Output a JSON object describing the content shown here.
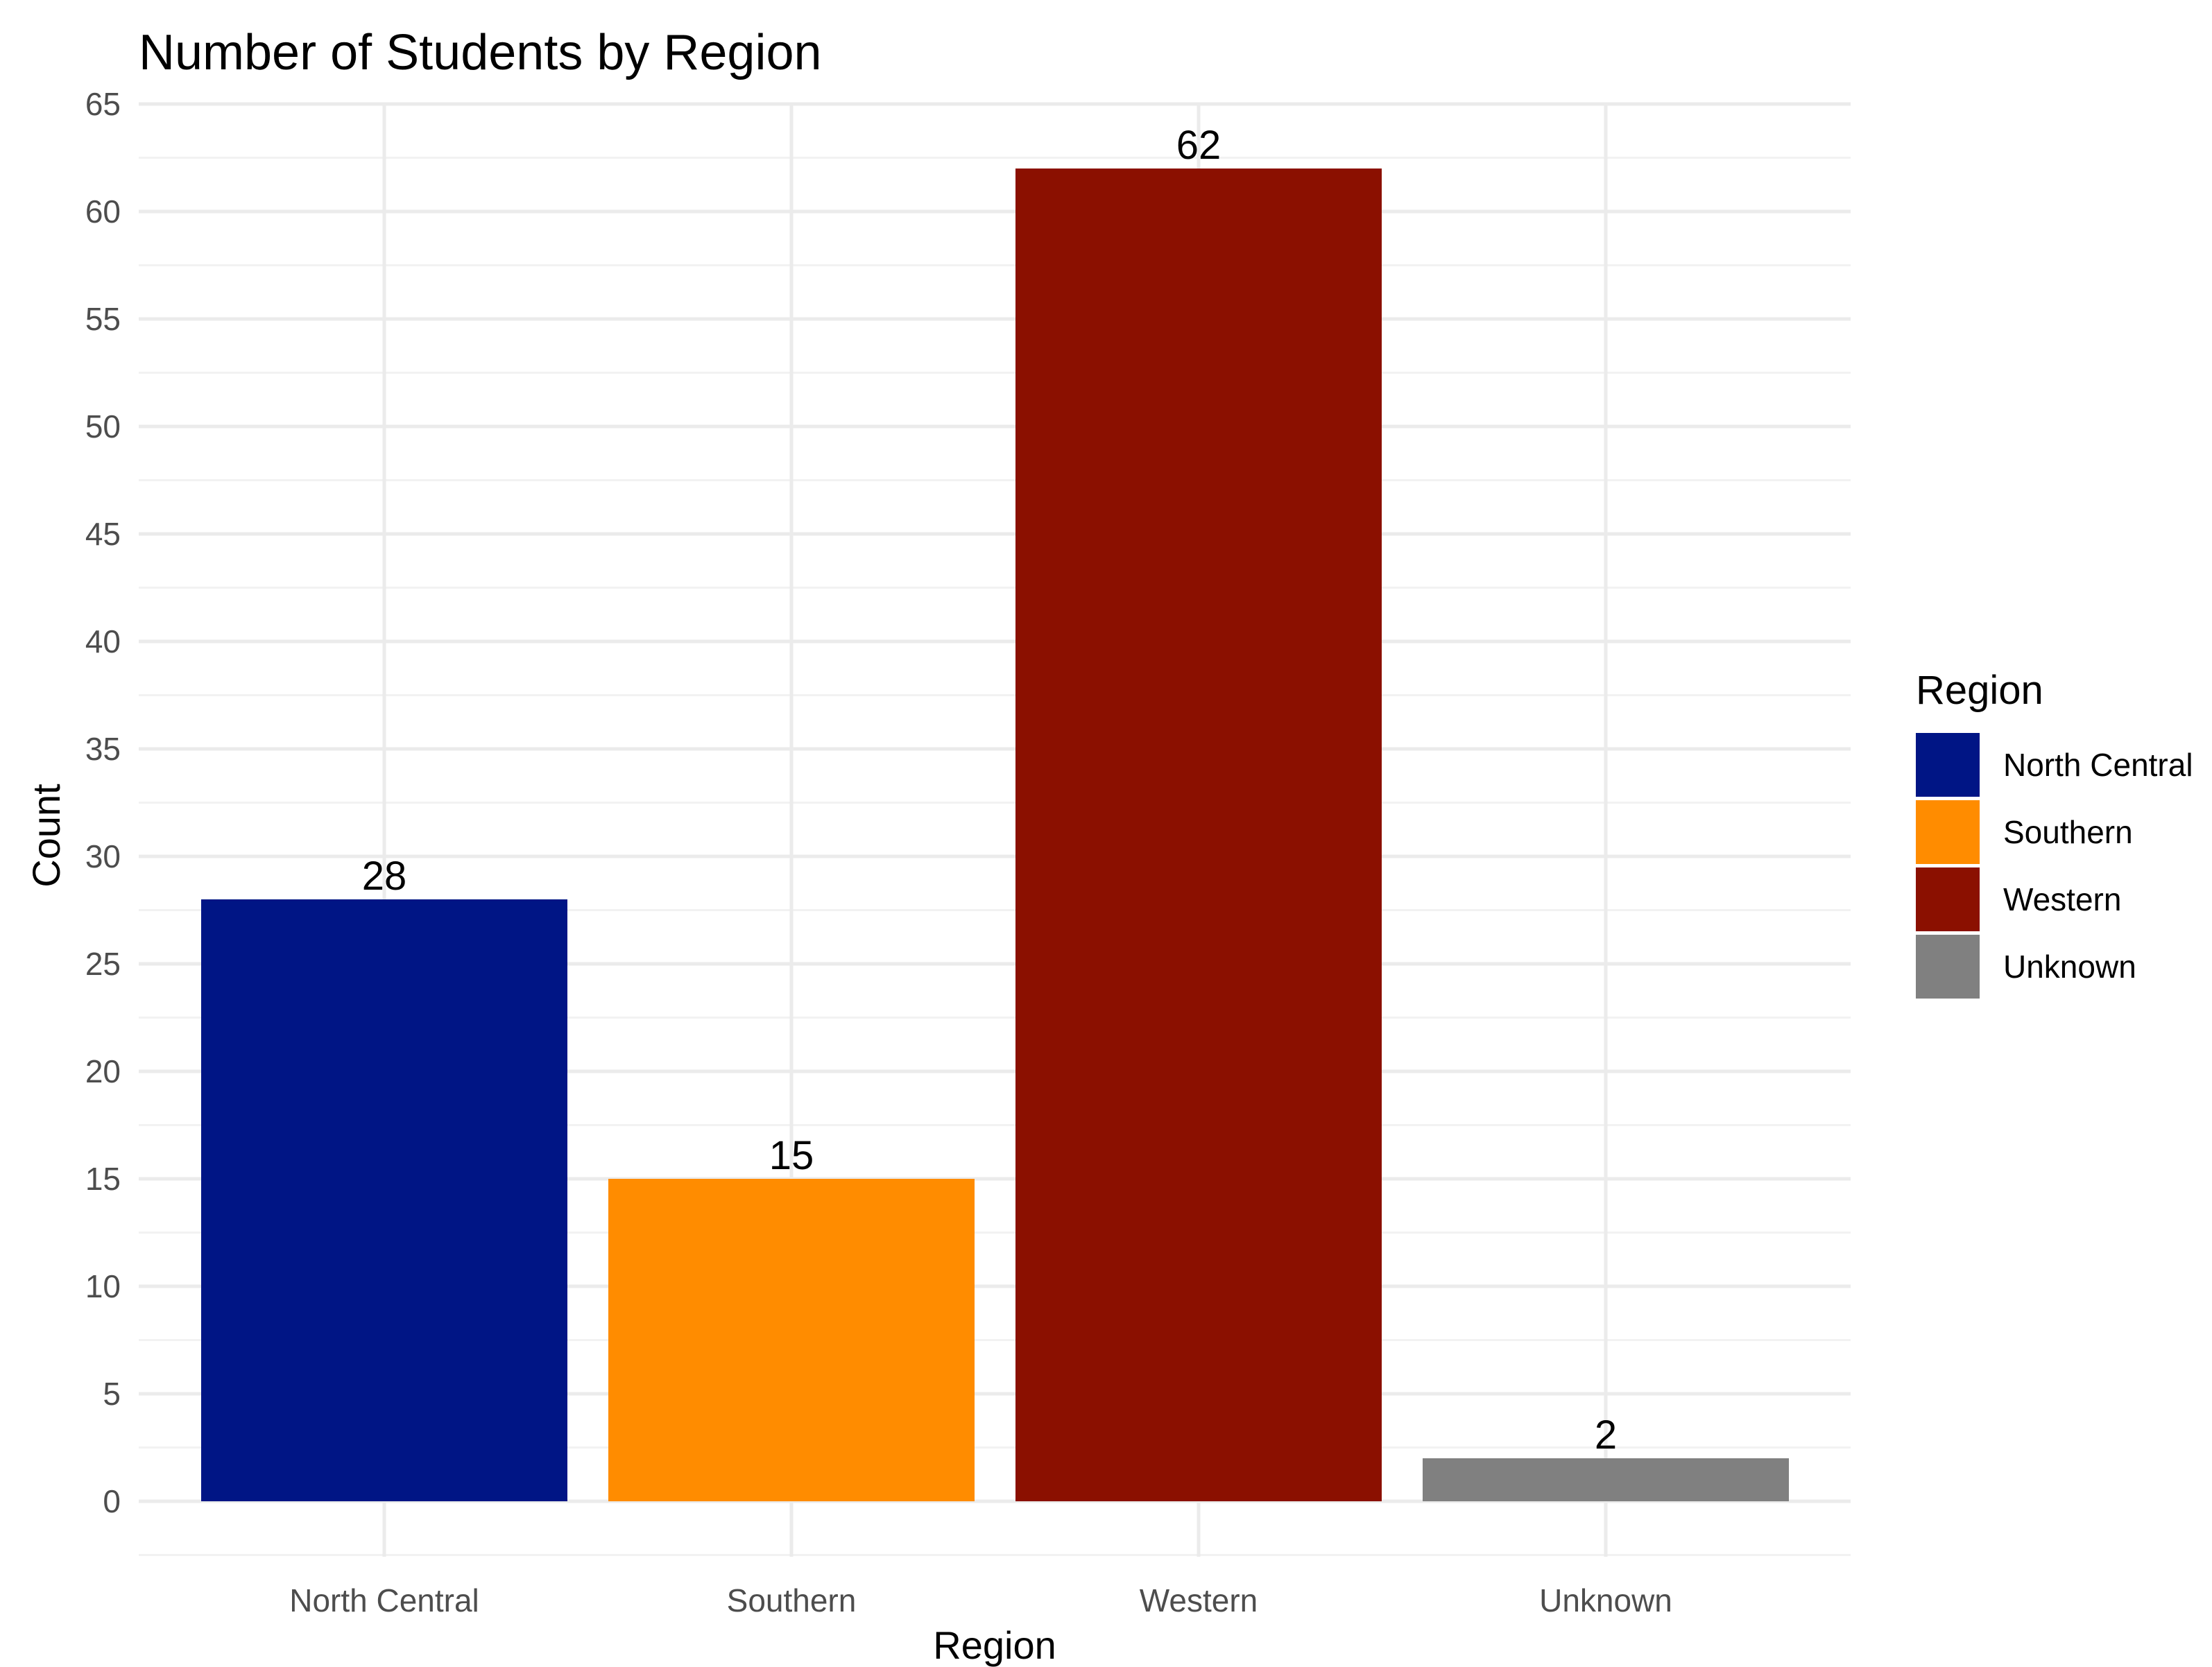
{
  "chart_data": {
    "type": "bar",
    "title": "Number of Students by Region",
    "xlabel": "Region",
    "ylabel": "Count",
    "categories": [
      "North Central",
      "Southern",
      "Western",
      "Unknown"
    ],
    "values": [
      28,
      15,
      62,
      2
    ],
    "data_labels": [
      "28",
      "15",
      "62",
      "2"
    ],
    "colors": [
      "#001585",
      "#ff8c00",
      "#8b1000",
      "#808080"
    ],
    "ylim": [
      -2.5,
      67.5
    ],
    "y_ticks": [
      0,
      5,
      10,
      15,
      20,
      25,
      30,
      35,
      40,
      45,
      50,
      55,
      60,
      65
    ],
    "grid": true,
    "legend": {
      "title": "Region",
      "placement": "right",
      "entries": [
        "North Central",
        "Southern",
        "Western",
        "Unknown"
      ]
    }
  }
}
